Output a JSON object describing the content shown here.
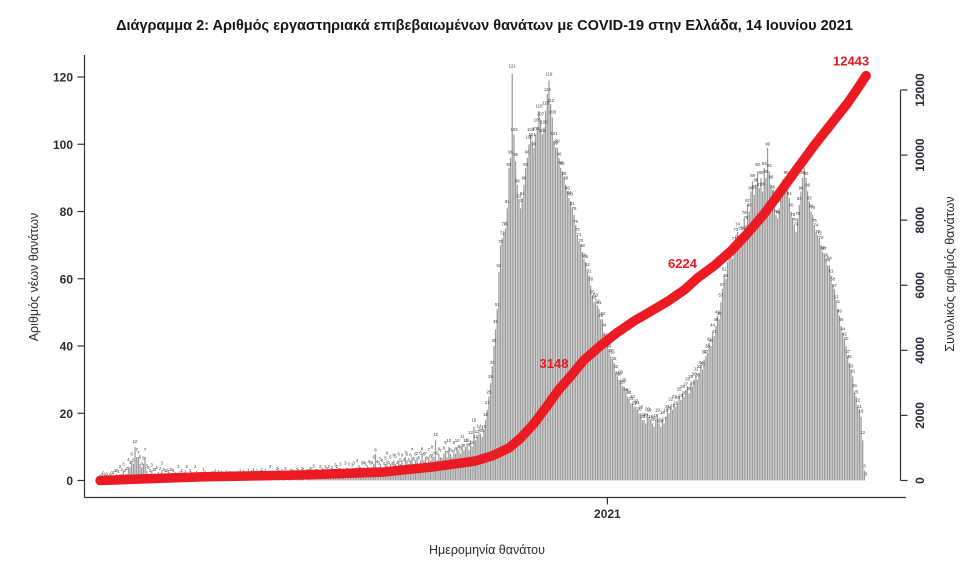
{
  "chart": {
    "title": "Διάγραμμα 2: Αριθμός εργαστηριακά επιβεβαιωμένων θανάτων με COVID-19 στην Ελλάδα, 14 Ιουνίου 2021",
    "x_axis_label": "Ημερομηνία θανάτου",
    "y_left_label": "Αριθμός νέων θανάτων",
    "y_right_label": "Συνολικός αριθμός θανάτων"
  },
  "chart_data": {
    "type": "bar",
    "title": "Διάγραμμα 2: Αριθμός εργαστηριακά επιβεβαιωμένων θανάτων με COVID-19 στην Ελλάδα, 14 Ιουνίου 2021",
    "xlabel": "Ημερομηνία θανάτου",
    "ylabel_left": "Αριθμός νέων θανάτων",
    "ylabel_right": "Συνολικός αριθμός θανάτων",
    "grid": false,
    "x_ticks": [
      {
        "label": "2021",
        "index": 304
      }
    ],
    "y_left_ticks": [
      0,
      20,
      40,
      60,
      80,
      100,
      120
    ],
    "y_left_range": [
      0,
      124
    ],
    "y_right_ticks": [
      0,
      2000,
      4000,
      6000,
      8000,
      10000,
      12000
    ],
    "y_right_range": [
      0,
      12600
    ],
    "colors": {
      "bar": "#9a9a9a",
      "line": "#ec1b23",
      "annotation": "#e61a22",
      "axis": "#333333",
      "tick_text": "#2b2b38",
      "bar_label": "#3b3b3b"
    },
    "series": [
      {
        "name": "daily_deaths",
        "type": "bar",
        "axis": "left",
        "color": "#9a9a9a",
        "values": [
          0,
          0,
          0,
          0,
          0,
          0,
          0,
          0,
          1,
          1,
          2,
          1,
          2,
          2,
          3,
          2,
          2,
          4,
          4,
          6,
          5,
          10,
          7,
          7,
          5,
          4,
          5,
          7,
          3,
          2,
          2,
          3,
          1,
          2,
          2,
          1,
          2,
          3,
          2,
          1,
          2,
          1,
          1,
          2,
          1,
          1,
          0,
          2,
          1,
          1,
          0,
          1,
          2,
          0,
          1,
          1,
          0,
          2,
          1,
          0,
          1,
          0,
          1,
          1,
          0,
          1,
          0,
          0,
          1,
          1,
          0,
          1,
          0,
          1,
          0,
          0,
          1,
          0,
          1,
          0,
          1,
          0,
          0,
          1,
          1,
          0,
          1,
          0,
          0,
          1,
          0,
          1,
          1,
          0,
          1,
          0,
          1,
          1,
          0,
          1,
          1,
          0,
          2,
          1,
          0,
          1,
          2,
          1,
          0,
          1,
          1,
          2,
          0,
          1,
          1,
          2,
          1,
          0,
          2,
          1,
          1,
          2,
          1,
          0,
          1,
          2,
          2,
          1,
          3,
          1,
          2,
          1,
          2,
          2,
          1,
          3,
          2,
          2,
          1,
          2,
          2,
          3,
          2,
          2,
          3,
          2,
          1,
          3,
          2,
          3,
          2,
          3,
          3,
          2,
          4,
          3,
          2,
          3,
          4,
          3,
          3,
          4,
          3,
          4,
          5,
          8,
          4,
          3,
          5,
          4,
          4,
          5,
          6,
          4,
          5,
          4,
          6,
          5,
          4,
          6,
          5,
          6,
          4,
          7,
          6,
          5,
          6,
          7,
          5,
          6,
          7,
          5,
          6,
          8,
          6,
          7,
          5,
          7,
          6,
          8,
          7,
          12,
          6,
          8,
          7,
          5,
          8,
          9,
          7,
          10,
          8,
          7,
          9,
          8,
          10,
          9,
          8,
          11,
          9,
          10,
          11,
          9,
          12,
          10,
          16,
          12,
          13,
          14,
          14,
          13,
          15,
          18,
          21,
          25,
          29,
          34,
          40,
          45,
          51,
          62,
          70,
          72,
          74,
          75,
          81,
          93,
          96,
          121,
          103,
          95,
          88,
          83,
          81,
          84,
          88,
          93,
          96,
          100,
          103,
          101,
          99,
          103,
          105,
          110,
          107,
          103,
          105,
          110,
          115,
          119,
          112,
          108,
          101,
          99,
          99,
          96,
          93,
          92,
          90,
          88,
          86,
          84,
          83,
          81,
          79,
          76,
          73,
          71,
          70,
          68,
          66,
          65,
          62,
          61,
          58,
          55,
          53,
          53,
          52,
          51,
          48,
          48,
          44,
          42,
          41,
          39,
          37,
          36,
          35,
          32,
          31,
          30,
          30,
          28,
          28,
          26,
          25,
          24,
          23,
          23,
          22,
          22,
          21,
          20,
          20,
          18,
          18,
          17,
          20,
          19,
          18,
          17,
          16,
          18,
          19,
          17,
          16,
          18,
          17,
          19,
          21,
          20,
          22,
          21,
          23,
          22,
          23,
          25,
          24,
          26,
          25,
          27,
          28,
          26,
          29,
          28,
          30,
          31,
          30,
          32,
          34,
          33,
          36,
          37,
          38,
          41,
          40,
          44,
          43,
          46,
          49,
          48,
          53,
          57,
          61,
          60,
          65,
          66,
          68,
          66,
          71,
          73,
          74,
          71,
          73,
          74,
          78,
          76,
          82,
          80,
          86,
          89,
          85,
          88,
          92,
          87,
          90,
          86,
          93,
          90,
          99,
          92,
          88,
          86,
          84,
          79,
          78,
          81,
          84,
          86,
          88,
          90,
          87,
          84,
          80,
          78,
          76,
          74,
          78,
          82,
          86,
          90,
          93,
          90,
          86,
          83,
          80,
          79,
          76,
          74,
          73,
          72,
          70,
          68,
          67,
          66,
          64,
          64,
          61,
          58,
          57,
          53,
          51,
          49,
          46,
          44,
          42,
          40,
          37,
          35,
          33,
          31,
          26,
          25,
          22,
          21,
          19,
          12,
          3,
          0
        ]
      },
      {
        "name": "cumulative_deaths",
        "type": "line",
        "axis": "right",
        "color": "#ec1b23",
        "final_value": 12443,
        "anchor_points": [
          [
            0,
            0
          ],
          [
            60,
            110
          ],
          [
            120,
            170
          ],
          [
            170,
            260
          ],
          [
            200,
            420
          ],
          [
            225,
            600
          ],
          [
            235,
            760
          ],
          [
            245,
            1000
          ],
          [
            252,
            1300
          ],
          [
            260,
            1750
          ],
          [
            268,
            2300
          ],
          [
            275,
            2800
          ],
          [
            281,
            3148
          ],
          [
            290,
            3700
          ],
          [
            300,
            4150
          ],
          [
            310,
            4550
          ],
          [
            320,
            4900
          ],
          [
            330,
            5200
          ],
          [
            340,
            5500
          ],
          [
            350,
            5850
          ],
          [
            358,
            6224
          ],
          [
            368,
            6600
          ],
          [
            378,
            7050
          ],
          [
            388,
            7600
          ],
          [
            398,
            8200
          ],
          [
            408,
            8900
          ],
          [
            418,
            9600
          ],
          [
            428,
            10300
          ],
          [
            438,
            10950
          ],
          [
            448,
            11600
          ],
          [
            454,
            12050
          ],
          [
            459,
            12443
          ]
        ]
      }
    ],
    "annotations": [
      {
        "label": "3148",
        "value": 3148,
        "at_index": 281,
        "series": "cumulative_deaths"
      },
      {
        "label": "6224",
        "value": 6224,
        "at_index": 358,
        "series": "cumulative_deaths"
      },
      {
        "label": "12443",
        "value": 12443,
        "at_index": 459,
        "series": "cumulative_deaths"
      }
    ]
  }
}
